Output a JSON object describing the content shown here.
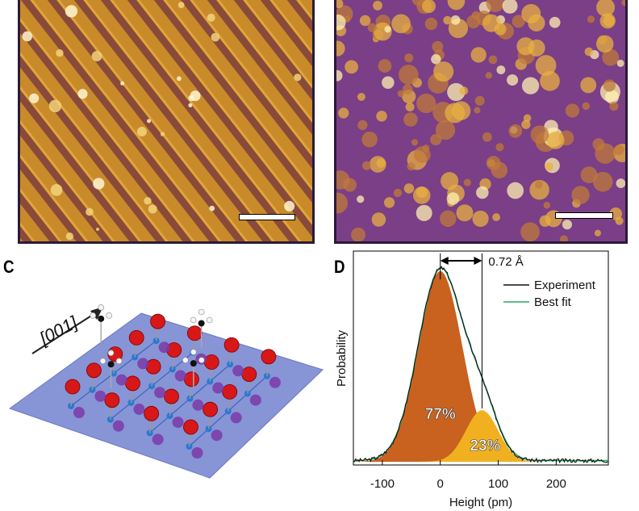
{
  "panels": {
    "a": {
      "scale_bar": "scale bar"
    },
    "b": {
      "scale_bar": "scale bar"
    },
    "c": {
      "label": "C",
      "direction_label": "[001]"
    },
    "d": {
      "label": "D"
    }
  },
  "chart_data": {
    "type": "area",
    "title": "",
    "xlabel": "Height (pm)",
    "ylabel": "Probability",
    "xlim": [
      -150,
      290
    ],
    "ylim": [
      0,
      1
    ],
    "x_ticks": [
      -100,
      0,
      100,
      200
    ],
    "x_tick_labels": [
      "-100",
      "0",
      "100",
      "200"
    ],
    "legend": [
      "Experiment",
      "Best fit"
    ],
    "legend_position": "top-right",
    "series": [
      {
        "name": "Experiment",
        "color": "#111111"
      },
      {
        "name": "Best fit",
        "color": "#22aa66"
      }
    ],
    "components": [
      {
        "name": "peak-1",
        "center_pm": 0,
        "sigma_pm": 38,
        "amplitude": 1.0,
        "percent_label": "77%",
        "color": "#c9611f"
      },
      {
        "name": "peak-2",
        "center_pm": 72,
        "sigma_pm": 28,
        "amplitude": 0.27,
        "percent_label": "23%",
        "color": "#f0b020"
      }
    ],
    "annotation": {
      "label": "0.72 Å",
      "from_pm": 0,
      "to_pm": 72
    }
  }
}
